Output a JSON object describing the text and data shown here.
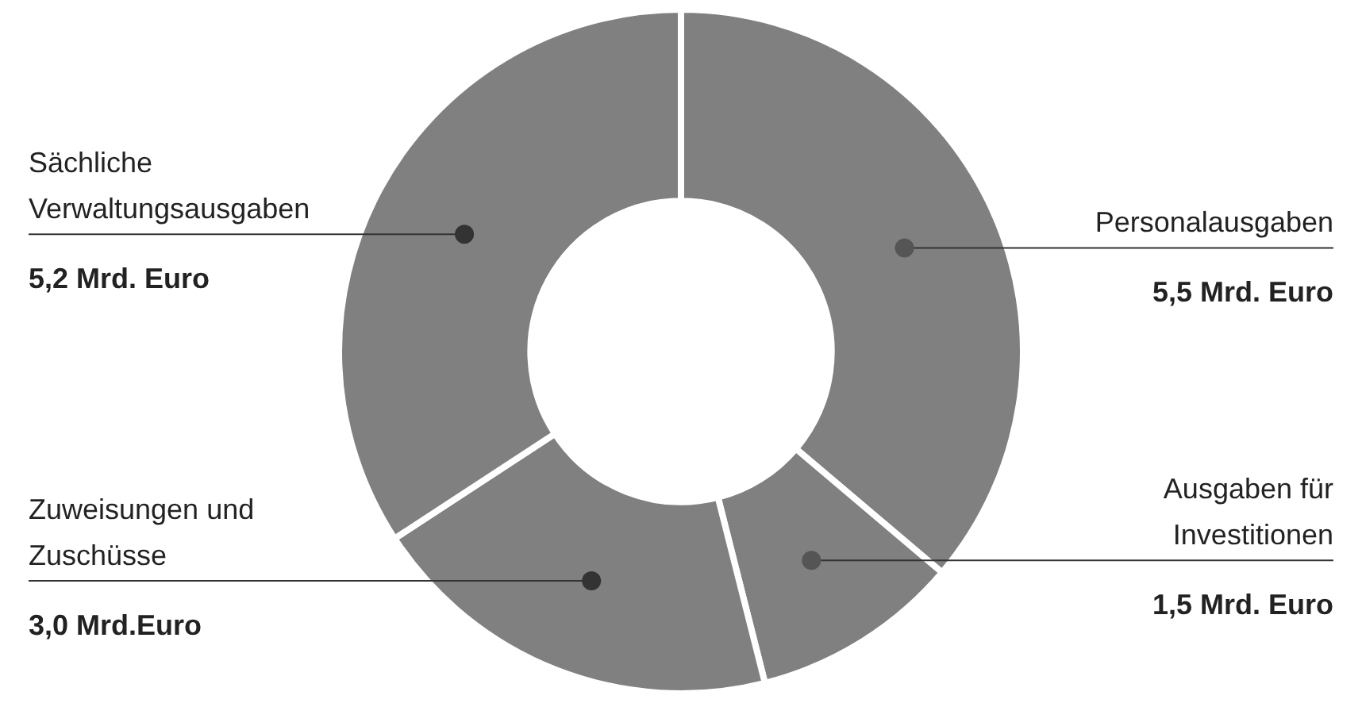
{
  "chart_data": {
    "type": "donut",
    "categories": [
      "Personalausgaben",
      "Ausgaben für Investitionen",
      "Zuweisungen und Zuschüsse",
      "Sächliche Verwaltungsausgaben"
    ],
    "values": [
      5.5,
      1.5,
      3.0,
      5.2
    ],
    "value_labels": [
      "5,5 Mrd. Euro",
      "1,5 Mrd. Euro",
      "3,0 Mrd.Euro",
      "5,2 Mrd. Euro"
    ],
    "colors": [
      "#808080",
      "#808080",
      "#808080",
      "#808080"
    ],
    "legend": false
  }
}
